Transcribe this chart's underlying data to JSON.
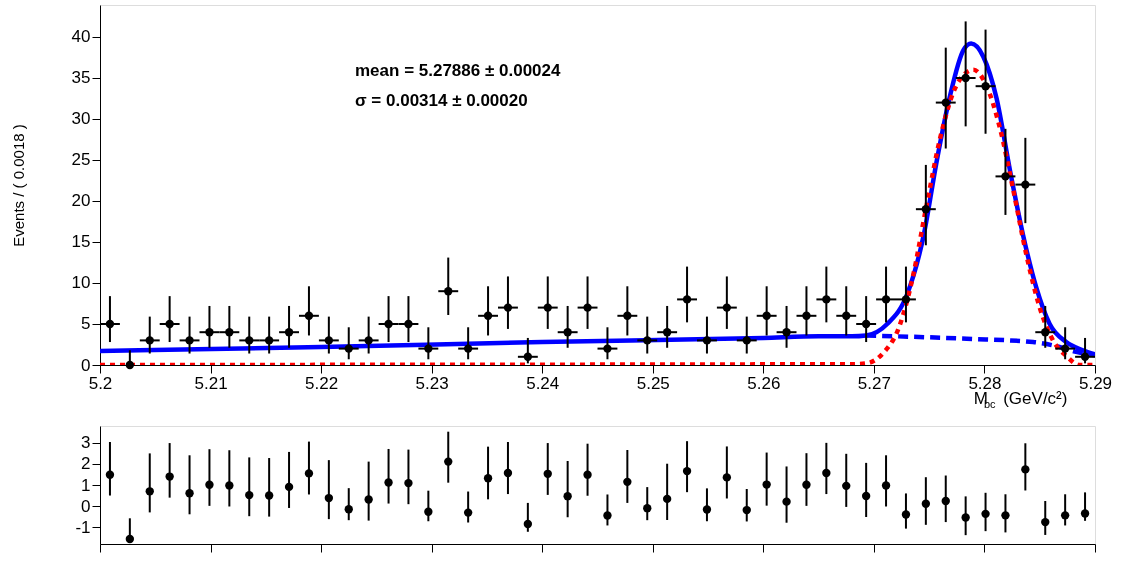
{
  "chart_data": [
    {
      "type": "scatter",
      "ylabel": "Events / ( 0.0018 )",
      "xlabel": "M$_{bc}$ (GeV/c²)",
      "annotations": [
        "mean = 5.27886 ± 0.00024",
        "σ = 0.00314 ± 0.00020"
      ],
      "x": [
        5.2009,
        5.2027,
        5.2045,
        5.2063,
        5.2081,
        5.2099,
        5.2117,
        5.2135,
        5.2153,
        5.2171,
        5.2189,
        5.2207,
        5.2225,
        5.2243,
        5.2261,
        5.2279,
        5.2297,
        5.2315,
        5.2333,
        5.2351,
        5.2369,
        5.2387,
        5.2405,
        5.2423,
        5.2441,
        5.2459,
        5.2477,
        5.2495,
        5.2513,
        5.2531,
        5.2549,
        5.2567,
        5.2585,
        5.2603,
        5.2621,
        5.2639,
        5.2657,
        5.2675,
        5.2693,
        5.2711,
        5.2729,
        5.2747,
        5.2765,
        5.2783,
        5.2801,
        5.2819,
        5.2837,
        5.2855,
        5.2873,
        5.2891
      ],
      "xlim": [
        5.2,
        5.29
      ],
      "xticks": [
        5.2,
        5.21,
        5.22,
        5.23,
        5.24,
        5.25,
        5.26,
        5.27,
        5.28,
        5.29
      ],
      "ylim": [
        0,
        43.9
      ],
      "yticks": [
        0,
        5,
        10,
        15,
        20,
        25,
        30,
        35,
        40
      ],
      "grid": false,
      "series": [
        {
          "type": "line",
          "color": "#0000ff",
          "line_style": "solid",
          "x": [
            5.2,
            5.22,
            5.24,
            5.26,
            5.265,
            5.268,
            5.2693,
            5.2712,
            5.273,
            5.2745,
            5.2757,
            5.2769,
            5.2781,
            5.2788,
            5.2799,
            5.2811,
            5.2823,
            5.2835,
            5.2847,
            5.2859,
            5.2874,
            5.2889,
            5.29
          ],
          "values": [
            1.7,
            2.2,
            2.8,
            3.3,
            3.5,
            3.5,
            3.6,
            5.0,
            8.6,
            15.8,
            25,
            32.9,
            38.4,
            39.2,
            37.6,
            32.5,
            23.8,
            15.8,
            9.4,
            5.0,
            2.8,
            1.8,
            1.3
          ]
        },
        {
          "type": "line",
          "color": "#0000ff",
          "line_style": "dashed",
          "x": [
            5.2693,
            5.2784,
            5.2844,
            5.2868,
            5.2883,
            5.29
          ],
          "values": [
            3.6,
            3.2,
            2.8,
            2.2,
            1.6,
            1.2
          ]
        },
        {
          "type": "line",
          "color": "#ff0000",
          "line_style": "dotted",
          "x": [
            5.2,
            5.268,
            5.2693,
            5.2708,
            5.2723,
            5.2735,
            5.2747,
            5.276,
            5.2772,
            5.2784,
            5.279,
            5.2802,
            5.2814,
            5.2826,
            5.2838,
            5.285,
            5.2862,
            5.2874,
            5.2886,
            5.29
          ],
          "values": [
            0,
            0.1,
            0.2,
            1.4,
            4.7,
            10.6,
            19,
            27.7,
            33.3,
            35.7,
            36,
            34,
            28.9,
            21.4,
            13.4,
            7,
            3,
            1.1,
            0,
            0
          ]
        },
        {
          "type": "scatter",
          "color": "#000000",
          "marker": "circle",
          "values": [
            5,
            0,
            3,
            5,
            3,
            4,
            4,
            3,
            3,
            4,
            6,
            3,
            2,
            3,
            5,
            5,
            2,
            9,
            2,
            6,
            7,
            1,
            7,
            4,
            7,
            2,
            6,
            3,
            4,
            8,
            3,
            7,
            3,
            6,
            4,
            6,
            8,
            6,
            5,
            8,
            8,
            19,
            32,
            35,
            34,
            23,
            22,
            4,
            2,
            1
          ],
          "errors": [
            [
              2.8,
              8.4
            ],
            [
              0,
              1.8
            ],
            [
              1.4,
              5.9
            ],
            [
              2.8,
              8.4
            ],
            [
              1.4,
              5.9
            ],
            [
              2.1,
              7.2
            ],
            [
              2.1,
              7.2
            ],
            [
              1.4,
              5.9
            ],
            [
              1.4,
              5.9
            ],
            [
              2.1,
              7.2
            ],
            [
              3.6,
              9.6
            ],
            [
              1.4,
              5.9
            ],
            [
              0.7,
              4.6
            ],
            [
              1.4,
              5.9
            ],
            [
              2.8,
              8.4
            ],
            [
              2.8,
              8.4
            ],
            [
              0.7,
              4.6
            ],
            [
              6.1,
              13.1
            ],
            [
              0.7,
              4.6
            ],
            [
              3.6,
              9.6
            ],
            [
              4.4,
              10.8
            ],
            [
              0.2,
              3.3
            ],
            [
              4.4,
              10.8
            ],
            [
              2.1,
              7.2
            ],
            [
              4.4,
              10.8
            ],
            [
              0.7,
              4.6
            ],
            [
              3.6,
              9.6
            ],
            [
              1.4,
              5.9
            ],
            [
              2.1,
              7.2
            ],
            [
              5.2,
              12.0
            ],
            [
              1.4,
              5.9
            ],
            [
              4.4,
              10.8
            ],
            [
              1.4,
              5.9
            ],
            [
              3.6,
              9.6
            ],
            [
              2.1,
              7.2
            ],
            [
              3.6,
              9.6
            ],
            [
              5.2,
              12.0
            ],
            [
              3.6,
              9.6
            ],
            [
              2.8,
              8.4
            ],
            [
              5.2,
              12.0
            ],
            [
              5.2,
              12.0
            ],
            [
              14.6,
              24.4
            ],
            [
              26.4,
              38.7
            ],
            [
              29.1,
              41.9
            ],
            [
              28.2,
              40.9
            ],
            [
              18.3,
              28.8
            ],
            [
              17.3,
              27.7
            ],
            [
              2.1,
              7.2
            ],
            [
              0.7,
              4.6
            ],
            [
              0.2,
              3.3
            ]
          ],
          "xerrors": [
            0.0009,
            null,
            0.0009,
            0.0009,
            0.0009,
            0.0009,
            0.0009,
            0.0009,
            0.0009,
            0.0009,
            0.0009,
            0.0009,
            0.0009,
            0.0009,
            0.0009,
            0.0009,
            0.0009,
            0.0009,
            0.0009,
            0.0009,
            0.0009,
            0.0009,
            0.0009,
            0.0009,
            0.0009,
            0.0009,
            0.0009,
            0.0009,
            0.0009,
            0.0009,
            0.0009,
            0.0009,
            0.0009,
            0.0009,
            0.0009,
            0.0009,
            0.0009,
            0.0009,
            0.0009,
            0.0009,
            0.0009,
            0.0009,
            0.0009,
            0.0009,
            0.0009,
            0.0009,
            0.0009,
            0.0009,
            0.0009,
            0.0009
          ]
        }
      ]
    },
    {
      "type": "scatter",
      "x": [
        5.2009,
        5.2027,
        5.2045,
        5.2063,
        5.2081,
        5.2099,
        5.2117,
        5.2135,
        5.2153,
        5.2171,
        5.2189,
        5.2207,
        5.2225,
        5.2243,
        5.2261,
        5.2279,
        5.2297,
        5.2315,
        5.2333,
        5.2351,
        5.2369,
        5.2387,
        5.2405,
        5.2423,
        5.2441,
        5.2459,
        5.2477,
        5.2495,
        5.2513,
        5.2531,
        5.2549,
        5.2567,
        5.2585,
        5.2603,
        5.2621,
        5.2639,
        5.2657,
        5.2675,
        5.2693,
        5.2711,
        5.2729,
        5.2747,
        5.2765,
        5.2783,
        5.2801,
        5.2819,
        5.2837,
        5.2855,
        5.2873,
        5.2891
      ],
      "xlim": [
        5.2,
        5.29
      ],
      "xticks": [
        5.2,
        5.21,
        5.22,
        5.23,
        5.24,
        5.25,
        5.26,
        5.27,
        5.28,
        5.29
      ],
      "ylim": [
        -1.8,
        3.8
      ],
      "yticks": [
        -1,
        0,
        1,
        2,
        3
      ],
      "tick_labels": "y",
      "grid": false,
      "series": [
        {
          "type": "scatter",
          "color": "#000000",
          "marker": "circle",
          "values": [
            1.49,
            -1.56,
            0.7,
            1.4,
            0.61,
            1.01,
            0.98,
            0.52,
            0.5,
            0.91,
            1.55,
            0.38,
            -0.15,
            0.31,
            1.12,
            1.09,
            -0.27,
            2.11,
            -0.31,
            1.32,
            1.57,
            -0.85,
            1.53,
            0.47,
            1.49,
            -0.45,
            1.15,
            -0.1,
            0.34,
            1.66,
            -0.16,
            1.36,
            -0.19,
            1.02,
            0.21,
            1.01,
            1.57,
            0.96,
            0.48,
            0.98,
            -0.4,
            0.11,
            0.24,
            -0.54,
            -0.37,
            -0.44,
            1.74,
            -0.76,
            -0.44,
            -0.35
          ],
          "errors": [
            [
              0.5,
              3.04
            ],
            [
              -1.56,
              -0.58
            ],
            [
              -0.3,
              2.5
            ],
            [
              0.4,
              2.99
            ],
            [
              -0.39,
              2.41
            ],
            [
              0.01,
              2.7
            ],
            [
              -0.02,
              2.65
            ],
            [
              -0.48,
              2.31
            ],
            [
              -0.5,
              2.28
            ],
            [
              -0.09,
              2.57
            ],
            [
              0.55,
              3.06
            ],
            [
              -0.62,
              2.18
            ],
            [
              -0.67,
              0.85
            ],
            [
              -0.69,
              2.11
            ],
            [
              0.12,
              2.71
            ],
            [
              0.09,
              2.68
            ],
            [
              -0.72,
              0.73
            ],
            [
              1.11,
              3.53
            ],
            [
              -0.78,
              0.69
            ],
            [
              0.32,
              2.82
            ],
            [
              0.57,
              3.04
            ],
            [
              -1.22,
              0.15
            ],
            [
              0.53,
              2.99
            ],
            [
              -0.53,
              2.14
            ],
            [
              0.49,
              2.96
            ],
            [
              -0.92,
              0.55
            ],
            [
              0.15,
              2.66
            ],
            [
              -0.67,
              0.9
            ],
            [
              -0.66,
              2.01
            ],
            [
              0.66,
              3.08
            ],
            [
              -0.72,
              0.84
            ],
            [
              0.36,
              2.83
            ],
            [
              -0.73,
              0.81
            ],
            [
              0.02,
              2.54
            ],
            [
              -0.79,
              1.88
            ],
            [
              0.01,
              2.51
            ],
            [
              0.57,
              3.0
            ],
            [
              -0.04,
              2.48
            ],
            [
              -0.52,
              2.05
            ],
            [
              -0.02,
              2.41
            ],
            [
              -1.07,
              0.6
            ],
            [
              -0.89,
              1.37
            ],
            [
              -0.76,
              1.45
            ],
            [
              -1.38,
              0.46
            ],
            [
              -1.19,
              0.63
            ],
            [
              -1.25,
              0.56
            ],
            [
              0.74,
              2.98
            ],
            [
              -1.37,
              0.24
            ],
            [
              -0.92,
              0.56
            ],
            [
              -0.7,
              0.65
            ]
          ]
        }
      ]
    }
  ]
}
